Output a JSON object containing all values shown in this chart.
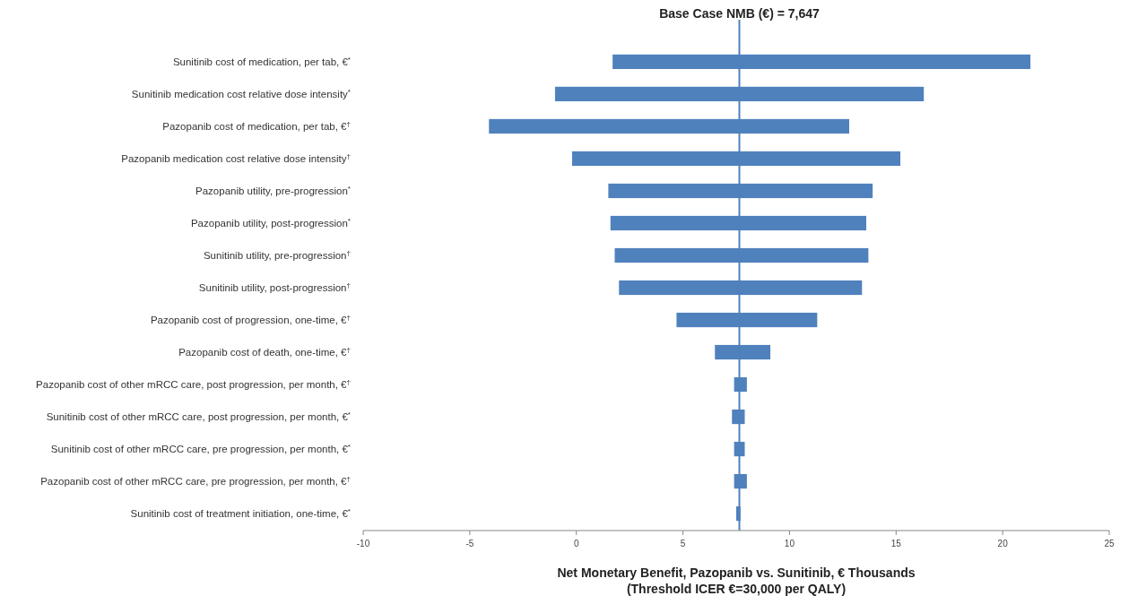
{
  "chart_data": {
    "type": "bar",
    "orientation": "horizontal",
    "categories": [
      "Sunitinib cost of medication, per tab, €$^{*}$",
      "Sunitinib medication cost relative dose intensity$^{*}$",
      "Pazopanib cost of medication, per tab, €$^{†}$",
      "Pazopanib medication cost relative dose intensity$^{†}$",
      "Pazopanib utility, pre-progression$^{*}$",
      "Pazopanib utility, post-progression$^{*}$",
      "Sunitinib utility, pre-progression$^{†}$",
      "Sunitinib utility, post-progression$^{†}$",
      "Pazopanib cost of progression, one-time, €$^{†}$",
      "Pazopanib cost of death, one-time, €$^{†}$",
      "Pazopanib cost of other mRCC care, post progression, per month, €$^{†}$",
      "Sunitinib cost of other mRCC care, post progression, per month, €$^{*}$",
      "Sunitinib cost of other mRCC care, pre progression, per month, €$^{*}$",
      "Pazopanib cost of other mRCC care, pre progression, per month, €$^{†}$",
      "Sunitinib cost of  treatment initiation, one-time, €$^{*}$"
    ],
    "base": [
      1.7,
      -1.0,
      -4.1,
      -0.2,
      1.5,
      1.6,
      1.8,
      2.0,
      4.7,
      6.5,
      7.4,
      7.3,
      7.4,
      7.4,
      7.5
    ],
    "values": [
      19.6,
      17.3,
      16.9,
      15.4,
      12.4,
      12.0,
      11.9,
      11.4,
      6.6,
      2.6,
      0.6,
      0.6,
      0.5,
      0.6,
      0.2
    ],
    "color": "#4f81bd",
    "xlim": [
      -10,
      25
    ],
    "xticks": [
      -10,
      -5,
      0,
      5,
      10,
      15,
      20,
      25
    ],
    "xlabel": "Net Monetary Benefit, Pazopanib vs. Sunitinib,  € Thousands\n(Threshold ICER €=30,000 per QALY)",
    "ref_lines": [
      {
        "axis": "x",
        "value": 7.647,
        "label": "Base Case NMB (€) = 7,647",
        "color": "#4f81bd"
      }
    ],
    "grid": false
  }
}
